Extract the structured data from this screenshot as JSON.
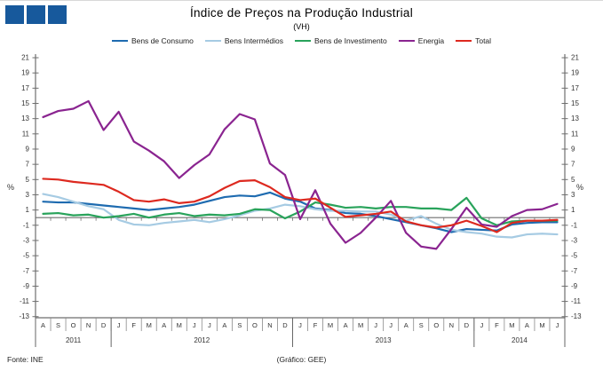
{
  "header": {
    "title": "Índice de Preços na Produção Industrial",
    "subtitle": "(VH)"
  },
  "footer": {
    "source": "Fonte: INE",
    "credit": "(Gráfico: GEE)"
  },
  "logo": {
    "color": "#17599c",
    "squares": 3
  },
  "chart_data": {
    "type": "line",
    "title": "Índice de Preços na Produção Industrial",
    "subtitle": "(VH)",
    "ylabel": "%",
    "ylabel_right": "%",
    "ylim": [
      -13,
      21
    ],
    "grid": false,
    "legend_position": "top",
    "yticks": [
      21,
      19,
      17,
      15,
      13,
      11,
      9,
      7,
      5,
      3,
      1,
      -1,
      -3,
      -5,
      -7,
      -9,
      -11,
      -13
    ],
    "months": [
      "A",
      "S",
      "O",
      "N",
      "D",
      "J",
      "F",
      "M",
      "A",
      "M",
      "J",
      "J",
      "A",
      "S",
      "O",
      "N",
      "D",
      "J",
      "F",
      "M",
      "A",
      "M",
      "J",
      "J",
      "A",
      "S",
      "O",
      "N",
      "D",
      "J",
      "F",
      "M",
      "A",
      "M",
      "J"
    ],
    "years": [
      {
        "label": "2011",
        "from": 0,
        "to": 4
      },
      {
        "label": "2012",
        "from": 5,
        "to": 16
      },
      {
        "label": "2013",
        "from": 17,
        "to": 28
      },
      {
        "label": "2014",
        "from": 29,
        "to": 34
      }
    ],
    "series": [
      {
        "name": "Bens de Consumo",
        "color": "#1e6bb0",
        "values": [
          2.1,
          2.0,
          2.0,
          1.8,
          1.6,
          1.4,
          1.2,
          1.0,
          1.2,
          1.4,
          1.7,
          2.2,
          2.7,
          2.9,
          2.8,
          3.3,
          2.5,
          2.1,
          1.2,
          1.0,
          0.6,
          0.5,
          0.2,
          -0.2,
          -0.6,
          -1.0,
          -1.4,
          -1.9,
          -1.5,
          -1.6,
          -1.7,
          -0.9,
          -0.7,
          -0.6,
          -0.6
        ]
      },
      {
        "name": "Bens Intermédios",
        "color": "#a6cbe3",
        "values": [
          3.1,
          2.7,
          2.1,
          1.5,
          1.1,
          -0.3,
          -0.9,
          -1.0,
          -0.7,
          -0.5,
          -0.3,
          -0.6,
          -0.2,
          0.3,
          0.9,
          1.2,
          1.7,
          1.5,
          1.1,
          0.9,
          0.9,
          0.8,
          0.8,
          0.4,
          -0.4,
          0.2,
          -0.8,
          -1.6,
          -1.9,
          -2.1,
          -2.5,
          -2.6,
          -2.2,
          -2.1,
          -2.2
        ]
      },
      {
        "name": "Bens de Investimento",
        "color": "#29a35b",
        "values": [
          0.5,
          0.6,
          0.3,
          0.4,
          0.0,
          0.2,
          0.5,
          0.0,
          0.4,
          0.6,
          0.2,
          0.4,
          0.3,
          0.5,
          1.1,
          1.0,
          -0.1,
          0.8,
          2.0,
          1.7,
          1.3,
          1.4,
          1.2,
          1.4,
          1.4,
          1.2,
          1.2,
          1.0,
          2.6,
          -0.1,
          -1.0,
          -0.5,
          -0.4,
          -0.4,
          -0.4
        ]
      },
      {
        "name": "Energia",
        "color": "#8a2490",
        "values": [
          13.2,
          14.0,
          14.3,
          15.3,
          11.5,
          13.9,
          10.0,
          8.8,
          7.4,
          5.2,
          6.9,
          8.3,
          11.6,
          13.6,
          12.9,
          7.1,
          5.6,
          -0.2,
          3.6,
          -0.8,
          -3.3,
          -2.0,
          0.0,
          2.2,
          -2.0,
          -3.8,
          -4.1,
          -1.5,
          1.3,
          -0.9,
          -1.2,
          0.2,
          1.0,
          1.1,
          1.8
        ]
      },
      {
        "name": "Total",
        "color": "#dd291f",
        "values": [
          5.1,
          5.0,
          4.7,
          4.5,
          4.3,
          3.4,
          2.3,
          2.1,
          2.4,
          1.9,
          2.1,
          2.8,
          3.9,
          4.8,
          4.9,
          4.0,
          2.7,
          2.3,
          2.5,
          1.3,
          0.1,
          0.3,
          0.5,
          0.8,
          -0.5,
          -1.0,
          -1.3,
          -1.0,
          -0.4,
          -1.1,
          -1.9,
          -0.7,
          -0.4,
          -0.4,
          -0.3
        ]
      }
    ]
  }
}
